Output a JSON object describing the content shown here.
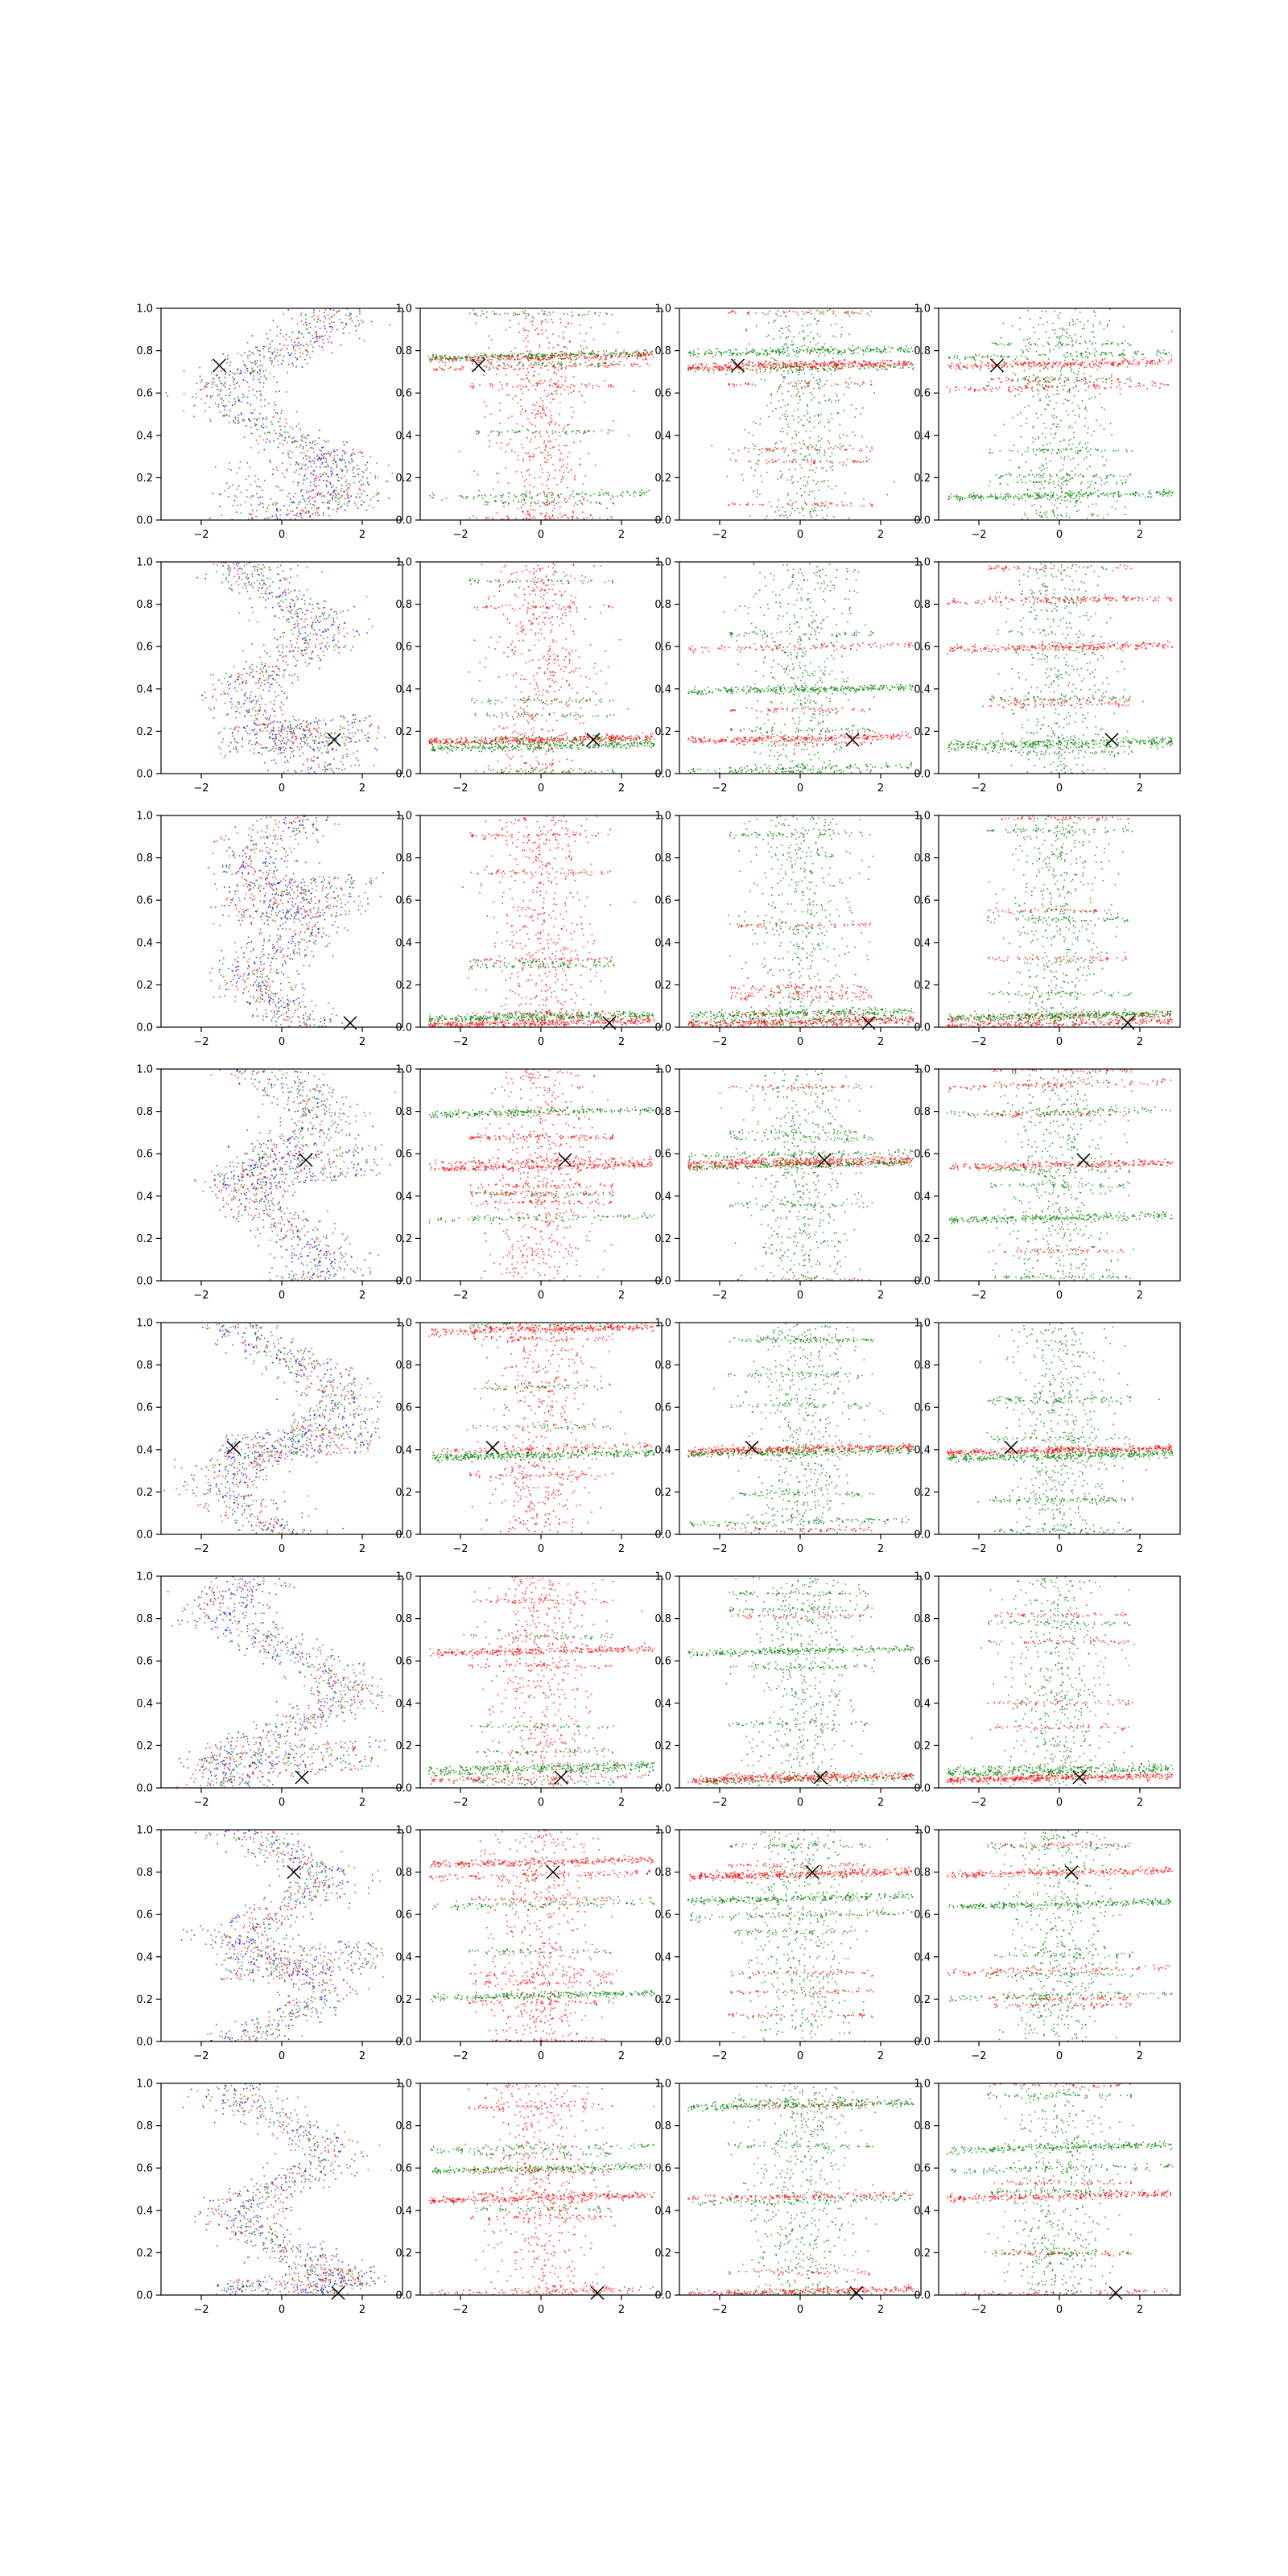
{
  "figure": {
    "rows": 8,
    "cols": 4,
    "x_ticks": [
      -2,
      0,
      2
    ],
    "y_ticks": [
      "0.0",
      "0.2",
      "0.4",
      "0.6",
      "0.8",
      "1.0"
    ]
  },
  "colors": {
    "red": "#ff0000",
    "green": "#008000",
    "blue": "#0000ff",
    "marker": "#000000"
  },
  "chart_data": {
    "type": "scatter",
    "xlim": [
      -3,
      3
    ],
    "ylim": [
      0,
      1
    ],
    "grid": false,
    "legend": "none",
    "marker_symbol": "x",
    "columns": [
      {
        "col": 1,
        "colors": [
          "red",
          "green",
          "blue"
        ],
        "pattern": "sinusoidal band of points"
      },
      {
        "col": 2,
        "colors": [
          "red",
          "green"
        ],
        "pattern": "horizontal streaks"
      },
      {
        "col": 3,
        "colors": [
          "green",
          "red"
        ],
        "pattern": "horizontal streaks"
      },
      {
        "col": 4,
        "colors": [
          "green",
          "red"
        ],
        "pattern": "horizontal streaks"
      }
    ],
    "rows": [
      {
        "row": 1,
        "marker": [
          -1.55,
          0.73
        ],
        "wave_amp": 1.3,
        "wave_freq": 1.25,
        "wave_phase": 0.0,
        "dense_band": [
          0.0,
          0.3
        ],
        "red_streaks": [
          0.63,
          0.77,
          0.73,
          0.74
        ],
        "green_streaks": [
          0.72,
          0.78,
          0.8,
          0.12
        ]
      },
      {
        "row": 2,
        "marker": [
          1.3,
          0.16
        ],
        "wave_amp": 0.9,
        "wave_freq": 1.6,
        "wave_phase": 1.0,
        "dense_band": [
          0.1,
          0.25
        ],
        "red_streaks": [
          0.82,
          0.16,
          0.17,
          0.6
        ],
        "green_streaks": [
          0.03,
          0.13,
          0.4,
          0.15
        ]
      },
      {
        "row": 3,
        "marker": [
          1.7,
          0.02
        ],
        "wave_amp": 0.7,
        "wave_freq": 1.8,
        "wave_phase": 2.0,
        "dense_band": [
          0.5,
          0.7
        ],
        "red_streaks": [
          0.05,
          0.02,
          0.03,
          0.02
        ],
        "green_streaks": [
          0.04,
          0.05,
          0.07,
          0.06
        ]
      },
      {
        "row": 4,
        "marker": [
          0.6,
          0.57
        ],
        "wave_amp": 0.9,
        "wave_freq": 1.5,
        "wave_phase": 0.5,
        "dense_band": [
          0.45,
          0.6
        ],
        "red_streaks": [
          0.93,
          0.54,
          0.57,
          0.55
        ],
        "green_streaks": [
          0.6,
          0.8,
          0.55,
          0.3
        ]
      },
      {
        "row": 5,
        "marker": [
          -1.2,
          0.41
        ],
        "wave_amp": 1.4,
        "wave_freq": 1.2,
        "wave_phase": 3.0,
        "dense_band": [
          0.35,
          0.5
        ],
        "red_streaks": [
          0.4,
          0.97,
          0.41,
          0.4
        ],
        "green_streaks": [
          0.06,
          0.38,
          0.39,
          0.37
        ]
      },
      {
        "row": 6,
        "marker": [
          0.5,
          0.05
        ],
        "wave_amp": 1.5,
        "wave_freq": 1.3,
        "wave_phase": 4.0,
        "dense_band": [
          0.05,
          0.2
        ],
        "red_streaks": [
          0.05,
          0.65,
          0.05,
          0.05
        ],
        "green_streaks": [
          0.04,
          0.1,
          0.65,
          0.08
        ]
      },
      {
        "row": 7,
        "marker": [
          0.3,
          0.8
        ],
        "wave_amp": 1.0,
        "wave_freq": 1.9,
        "wave_phase": 5.0,
        "dense_band": [
          0.3,
          0.45
        ],
        "red_streaks": [
          0.34,
          0.85,
          0.79,
          0.8
        ],
        "green_streaks": [
          0.6,
          0.22,
          0.68,
          0.65
        ]
      },
      {
        "row": 8,
        "marker": [
          1.4,
          0.01
        ],
        "wave_amp": 1.1,
        "wave_freq": 1.7,
        "wave_phase": 0.7,
        "dense_band": [
          0.0,
          0.1
        ],
        "red_streaks": [
          0.01,
          0.46,
          0.02,
          0.47
        ],
        "green_streaks": [
          0.45,
          0.6,
          0.9,
          0.7
        ]
      }
    ]
  }
}
